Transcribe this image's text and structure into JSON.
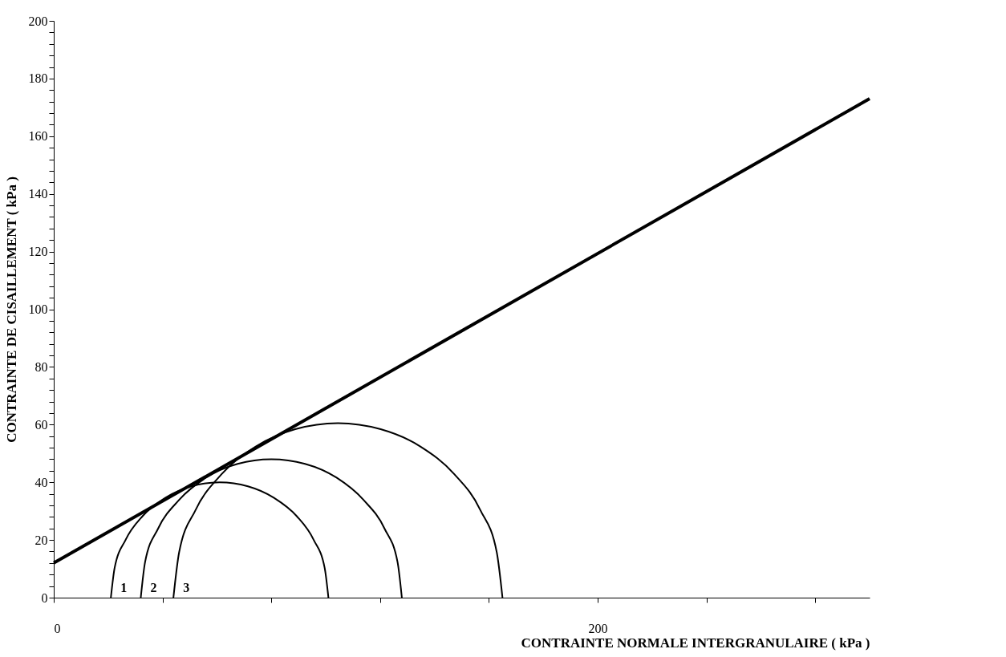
{
  "chart_data": {
    "type": "line",
    "xlabel": "CONTRAINTE NORMALE INTERGRANULAIRE ( kPa )",
    "ylabel": "CONTRAINTE DE CISAILLEMENT ( kPa )",
    "xlim": [
      0,
      300
    ],
    "ylim": [
      0,
      200
    ],
    "xticks": [
      0,
      {
        "value": 40,
        "label": null
      },
      {
        "value": 80,
        "label": null
      },
      {
        "value": 120,
        "label": null
      },
      {
        "value": 160,
        "label": null
      },
      200,
      {
        "value": 240,
        "label": null
      },
      {
        "value": 280,
        "label": null
      }
    ],
    "yticks": [
      0,
      {
        "value": 4,
        "label": null
      },
      {
        "value": 8,
        "label": null
      },
      {
        "value": 12,
        "label": null
      },
      {
        "value": 16,
        "label": null
      },
      20,
      {
        "value": 24,
        "label": null
      },
      {
        "value": 28,
        "label": null
      },
      {
        "value": 32,
        "label": null
      },
      {
        "value": 36,
        "label": null
      },
      40,
      {
        "value": 44,
        "label": null
      },
      {
        "value": 48,
        "label": null
      },
      {
        "value": 52,
        "label": null
      },
      {
        "value": 56,
        "label": null
      },
      60,
      {
        "value": 64,
        "label": null
      },
      {
        "value": 68,
        "label": null
      },
      {
        "value": 72,
        "label": null
      },
      {
        "value": 76,
        "label": null
      },
      80,
      {
        "value": 84,
        "label": null
      },
      {
        "value": 88,
        "label": null
      },
      {
        "value": 92,
        "label": null
      },
      {
        "value": 96,
        "label": null
      },
      100,
      {
        "value": 104,
        "label": null
      },
      {
        "value": 108,
        "label": null
      },
      {
        "value": 112,
        "label": null
      },
      {
        "value": 116,
        "label": null
      },
      120,
      {
        "value": 124,
        "label": null
      },
      {
        "value": 128,
        "label": null
      },
      {
        "value": 132,
        "label": null
      },
      {
        "value": 136,
        "label": null
      },
      140,
      {
        "value": 144,
        "label": null
      },
      {
        "value": 148,
        "label": null
      },
      {
        "value": 152,
        "label": null
      },
      {
        "value": 156,
        "label": null
      },
      160,
      {
        "value": 164,
        "label": null
      },
      {
        "value": 168,
        "label": null
      },
      {
        "value": 172,
        "label": null
      },
      {
        "value": 176,
        "label": null
      },
      180,
      {
        "value": 184,
        "label": null
      },
      {
        "value": 188,
        "label": null
      },
      {
        "value": 192,
        "label": null
      },
      {
        "value": 196,
        "label": null
      },
      200
    ],
    "grid": false,
    "marker": "none",
    "line_style": "solid",
    "series": [
      {
        "color": "#000000",
        "x": [
          0,
          300
        ],
        "values": [
          12,
          173
        ]
      },
      {
        "color": "#000000",
        "x": [
          21,
          22.4,
          26.4,
          32.7,
          41,
          50.6,
          61,
          71.4,
          81,
          89.3,
          95.6,
          99.6,
          101
        ],
        "values": [
          0,
          10.4,
          20,
          28.3,
          34.6,
          38.6,
          40,
          38.6,
          34.6,
          28.3,
          20,
          10.4,
          0
        ]
      },
      {
        "color": "#000000",
        "x": [
          32,
          33.6,
          38.4,
          46.1,
          56,
          67.6,
          80,
          92.4,
          104,
          113.9,
          121.6,
          126.4,
          128
        ],
        "values": [
          0,
          12.4,
          24,
          33.9,
          41.6,
          46.4,
          48,
          46.4,
          41.6,
          33.9,
          24,
          12.4,
          0
        ]
      },
      {
        "color": "#000000",
        "x": [
          44,
          46.1,
          52.1,
          61.7,
          74.3,
          88.8,
          104.5,
          120.2,
          134.8,
          147.3,
          156.9,
          162.9,
          165
        ],
        "values": [
          0,
          15.7,
          30.3,
          42.8,
          52.4,
          58.4,
          60.5,
          58.4,
          52.4,
          42.8,
          30.3,
          15.7,
          0
        ]
      }
    ],
    "annotations": [
      "1",
      "2",
      "3"
    ]
  }
}
